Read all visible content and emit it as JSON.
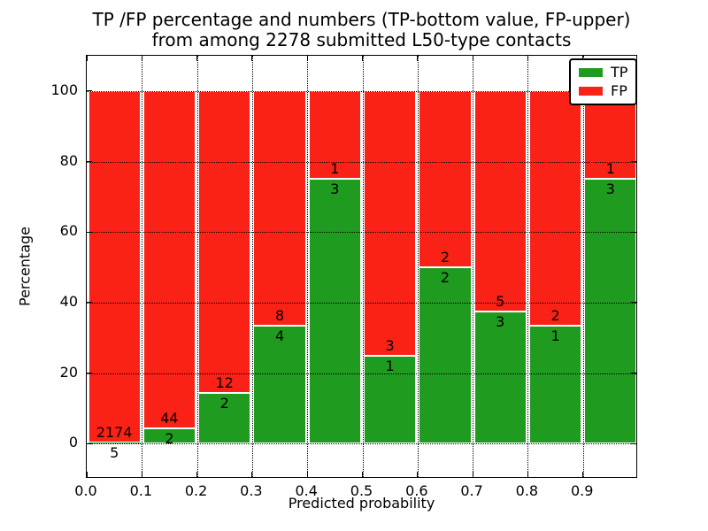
{
  "figure": {
    "title_line1": "TP /FP percentage and numbers (TP-bottom value, FP-upper)",
    "title_line2": "from among 2278 submitted L50-type contacts",
    "xlabel": "Predicted probability",
    "ylabel": "Percentage"
  },
  "legend": {
    "position": "upper right",
    "entries": [
      {
        "label": "TP",
        "color": "#1f9b1f"
      },
      {
        "label": "FP",
        "color": "#fa2116"
      }
    ]
  },
  "chart_data": {
    "type": "bar",
    "stacked": true,
    "title": "TP /FP percentage and numbers (TP-bottom value, FP-upper) from among 2278 submitted L50-type contacts",
    "xlabel": "Predicted probability",
    "ylabel": "Percentage",
    "xlim": [
      0.0,
      1.0
    ],
    "ylim": [
      -10,
      110
    ],
    "grid": "dotted black, horizontal lines drawn above bars",
    "legend_position": "upper right",
    "total_submitted": 2278,
    "colors": {
      "TP": "#1f9b1f",
      "FP": "#fa2116"
    },
    "x_ticks": [
      {
        "value": 0.0,
        "label": "0.0"
      },
      {
        "value": 0.1,
        "label": "0.1"
      },
      {
        "value": 0.2,
        "label": "0.2"
      },
      {
        "value": 0.3,
        "label": "0.3"
      },
      {
        "value": 0.4,
        "label": "0.4"
      },
      {
        "value": 0.5,
        "label": "0.5"
      },
      {
        "value": 0.6,
        "label": "0.6"
      },
      {
        "value": 0.7,
        "label": "0.7"
      },
      {
        "value": 0.8,
        "label": "0.8"
      },
      {
        "value": 0.9,
        "label": "0.9"
      }
    ],
    "y_ticks": [
      {
        "value": 0,
        "label": "0"
      },
      {
        "value": 20,
        "label": "20"
      },
      {
        "value": 40,
        "label": "40"
      },
      {
        "value": 60,
        "label": "60"
      },
      {
        "value": 80,
        "label": "80"
      },
      {
        "value": 100,
        "label": "100"
      }
    ],
    "bins": [
      {
        "x_start": 0.0,
        "x_end": 0.1,
        "tp_count": 5,
        "fp_count": 2174,
        "tp_pct": 0.23,
        "fp_pct": 99.77
      },
      {
        "x_start": 0.1,
        "x_end": 0.2,
        "tp_count": 2,
        "fp_count": 44,
        "tp_pct": 4.35,
        "fp_pct": 95.65
      },
      {
        "x_start": 0.2,
        "x_end": 0.3,
        "tp_count": 2,
        "fp_count": 12,
        "tp_pct": 14.29,
        "fp_pct": 85.71
      },
      {
        "x_start": 0.3,
        "x_end": 0.4,
        "tp_count": 4,
        "fp_count": 8,
        "tp_pct": 33.33,
        "fp_pct": 66.67
      },
      {
        "x_start": 0.4,
        "x_end": 0.5,
        "tp_count": 3,
        "fp_count": 1,
        "tp_pct": 75.0,
        "fp_pct": 25.0
      },
      {
        "x_start": 0.5,
        "x_end": 0.6,
        "tp_count": 1,
        "fp_count": 3,
        "tp_pct": 25.0,
        "fp_pct": 75.0
      },
      {
        "x_start": 0.6,
        "x_end": 0.7,
        "tp_count": 2,
        "fp_count": 2,
        "tp_pct": 50.0,
        "fp_pct": 50.0
      },
      {
        "x_start": 0.7,
        "x_end": 0.8,
        "tp_count": 3,
        "fp_count": 5,
        "tp_pct": 37.5,
        "fp_pct": 62.5
      },
      {
        "x_start": 0.8,
        "x_end": 0.9,
        "tp_count": 1,
        "fp_count": 2,
        "tp_pct": 33.33,
        "fp_pct": 66.67
      },
      {
        "x_start": 0.9,
        "x_end": 1.0,
        "tp_count": 3,
        "fp_count": 1,
        "tp_pct": 75.0,
        "fp_pct": 25.0
      }
    ]
  }
}
